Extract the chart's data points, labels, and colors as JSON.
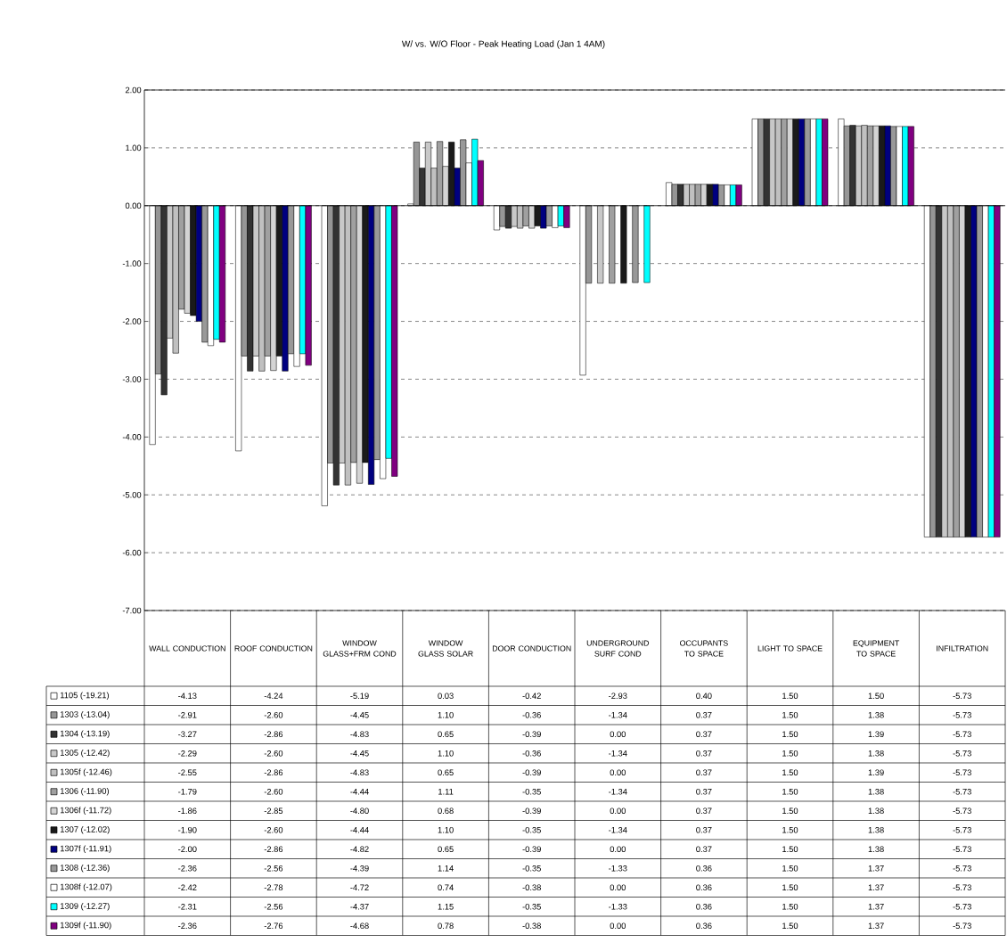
{
  "chart_data": {
    "type": "bar",
    "title": "W/ vs. W/O Floor - Peak Heating Load (Jan 1 4AM)",
    "categories": [
      "WALL CONDUCTION",
      "ROOF CONDUCTION",
      "WINDOW GLASS+FRM COND",
      "WINDOW GLASS SOLAR",
      "DOOR CONDUCTION",
      "UNDERGROUND SURF COND",
      "OCCUPANTS TO SPACE",
      "LIGHT TO SPACE",
      "EQUIPMENT TO SPACE",
      "INFILTRATION"
    ],
    "series": [
      {
        "name": "1105 (-19.21)",
        "color": "#ffffff",
        "values": [
          -4.13,
          -4.24,
          -5.19,
          0.03,
          -0.42,
          -2.93,
          0.4,
          1.5,
          1.5,
          -5.73
        ],
        "value_labels": [
          "-4.13",
          "-4.24",
          "-5.19",
          "0.03",
          "-0.42",
          "-2.93",
          "0.40",
          "1.50",
          "1.50",
          "-5.73"
        ]
      },
      {
        "name": "1303 (-13.04)",
        "color": "#969696",
        "values": [
          -2.91,
          -2.6,
          -4.45,
          1.1,
          -0.36,
          -1.34,
          0.37,
          1.5,
          1.38,
          -5.73
        ],
        "value_labels": [
          "-2.91",
          "-2.60",
          "-4.45",
          "1.10",
          "-0.36",
          "-1.34",
          "0.37",
          "1.50",
          "1.38",
          "-5.73"
        ]
      },
      {
        "name": "1304 (-13.19)",
        "color": "#333333",
        "values": [
          -3.27,
          -2.86,
          -4.83,
          0.65,
          -0.39,
          0.0,
          0.37,
          1.5,
          1.39,
          -5.73
        ],
        "value_labels": [
          "-3.27",
          "-2.86",
          "-4.83",
          "0.65",
          "-0.39",
          "0.00",
          "0.37",
          "1.50",
          "1.39",
          "-5.73"
        ]
      },
      {
        "name": "1305 (-12.42)",
        "color": "#c8c8c8",
        "values": [
          -2.29,
          -2.6,
          -4.45,
          1.1,
          -0.36,
          -1.34,
          0.37,
          1.5,
          1.38,
          -5.73
        ],
        "value_labels": [
          "-2.29",
          "-2.60",
          "-4.45",
          "1.10",
          "-0.36",
          "-1.34",
          "0.37",
          "1.50",
          "1.38",
          "-5.73"
        ]
      },
      {
        "name": "1305f (-12.46)",
        "color": "#c0c0c0",
        "values": [
          -2.55,
          -2.86,
          -4.83,
          0.65,
          -0.39,
          0.0,
          0.37,
          1.5,
          1.39,
          -5.73
        ],
        "value_labels": [
          "-2.55",
          "-2.86",
          "-4.83",
          "0.65",
          "-0.39",
          "0.00",
          "0.37",
          "1.50",
          "1.39",
          "-5.73"
        ]
      },
      {
        "name": "1306 (-11.90)",
        "color": "#a0a0a0",
        "values": [
          -1.79,
          -2.6,
          -4.44,
          1.11,
          -0.35,
          -1.34,
          0.37,
          1.5,
          1.38,
          -5.73
        ],
        "value_labels": [
          "-1.79",
          "-2.60",
          "-4.44",
          "1.11",
          "-0.35",
          "-1.34",
          "0.37",
          "1.50",
          "1.38",
          "-5.73"
        ]
      },
      {
        "name": "1306f (-11.72)",
        "color": "#d4d4d4",
        "values": [
          -1.86,
          -2.85,
          -4.8,
          0.68,
          -0.39,
          0.0,
          0.37,
          1.5,
          1.38,
          -5.73
        ],
        "value_labels": [
          "-1.86",
          "-2.85",
          "-4.80",
          "0.68",
          "-0.39",
          "0.00",
          "0.37",
          "1.50",
          "1.38",
          "-5.73"
        ]
      },
      {
        "name": "1307 (-12.02)",
        "color": "#1a1a1a",
        "values": [
          -1.9,
          -2.6,
          -4.44,
          1.1,
          -0.35,
          -1.34,
          0.37,
          1.5,
          1.38,
          -5.73
        ],
        "value_labels": [
          "-1.90",
          "-2.60",
          "-4.44",
          "1.10",
          "-0.35",
          "-1.34",
          "0.37",
          "1.50",
          "1.38",
          "-5.73"
        ]
      },
      {
        "name": "1307f (-11.91)",
        "color": "#000080",
        "values": [
          -2.0,
          -2.86,
          -4.82,
          0.65,
          -0.39,
          0.0,
          0.37,
          1.5,
          1.38,
          -5.73
        ],
        "value_labels": [
          "-2.00",
          "-2.86",
          "-4.82",
          "0.65",
          "-0.39",
          "0.00",
          "0.37",
          "1.50",
          "1.38",
          "-5.73"
        ]
      },
      {
        "name": "1308 (-12.36)",
        "color": "#999999",
        "values": [
          -2.36,
          -2.56,
          -4.39,
          1.14,
          -0.35,
          -1.33,
          0.36,
          1.5,
          1.37,
          -5.73
        ],
        "value_labels": [
          "-2.36",
          "-2.56",
          "-4.39",
          "1.14",
          "-0.35",
          "-1.33",
          "0.36",
          "1.50",
          "1.37",
          "-5.73"
        ]
      },
      {
        "name": "1308f (-12.07)",
        "color": "#ffffff",
        "values": [
          -2.42,
          -2.78,
          -4.72,
          0.74,
          -0.38,
          0.0,
          0.36,
          1.5,
          1.37,
          -5.73
        ],
        "value_labels": [
          "-2.42",
          "-2.78",
          "-4.72",
          "0.74",
          "-0.38",
          "0.00",
          "0.36",
          "1.50",
          "1.37",
          "-5.73"
        ]
      },
      {
        "name": "1309 (-12.27)",
        "color": "#00ffff",
        "values": [
          -2.31,
          -2.56,
          -4.37,
          1.15,
          -0.35,
          -1.33,
          0.36,
          1.5,
          1.37,
          -5.73
        ],
        "value_labels": [
          "-2.31",
          "-2.56",
          "-4.37",
          "1.15",
          "-0.35",
          "-1.33",
          "0.36",
          "1.50",
          "1.37",
          "-5.73"
        ]
      },
      {
        "name": "1309f (-11.90)",
        "color": "#800080",
        "values": [
          -2.36,
          -2.76,
          -4.68,
          0.78,
          -0.38,
          0.0,
          0.36,
          1.5,
          1.37,
          -5.73
        ],
        "value_labels": [
          "-2.36",
          "-2.76",
          "-4.68",
          "0.78",
          "-0.38",
          "0.00",
          "0.36",
          "1.50",
          "1.37",
          "-5.73"
        ]
      }
    ],
    "ylim": [
      -7,
      2
    ],
    "yticks": [
      {
        "value": 2,
        "label": "2.00"
      },
      {
        "value": 1,
        "label": "1.00"
      },
      {
        "value": 0,
        "label": "0.00"
      },
      {
        "value": -1,
        "label": "-1.00"
      },
      {
        "value": -2,
        "label": "-2.00"
      },
      {
        "value": -3,
        "label": "-3.00"
      },
      {
        "value": -4,
        "label": "-4.00"
      },
      {
        "value": -5,
        "label": "-5.00"
      },
      {
        "value": -6,
        "label": "-6.00"
      },
      {
        "value": -7,
        "label": "-7.00"
      }
    ],
    "grid": "y",
    "legend": "bottom"
  }
}
